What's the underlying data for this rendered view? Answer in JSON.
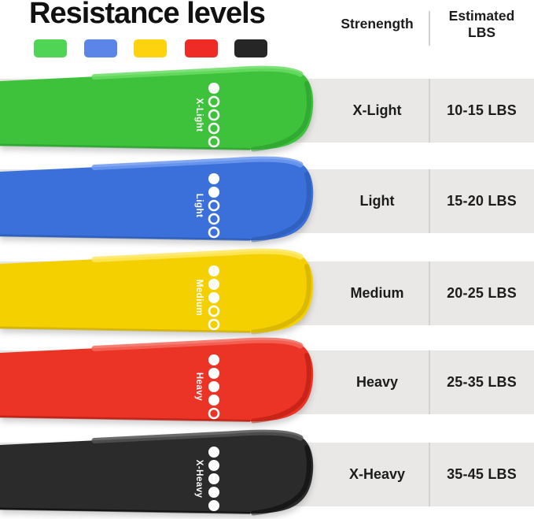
{
  "title": "Resistance levels",
  "table": {
    "strength_header": "Strenength",
    "lbs_header_line1": "Estimated",
    "lbs_header_line2": "LBS"
  },
  "colors": {
    "stripe": "#e9e8e6",
    "divider": "#d2d2d0",
    "text": "#1c1c1c",
    "dot": "#ffffff"
  },
  "bands": [
    {
      "id": "x-light",
      "label": "X-Light",
      "lbs": "10-15 LBS",
      "filled_dots": 1,
      "total_dots": 5,
      "swatch": "#4fd455",
      "main": "#3ec23c",
      "light": "#68dd63",
      "dark": "#1f8f26"
    },
    {
      "id": "light",
      "label": "Light",
      "lbs": "15-20 LBS",
      "filled_dots": 2,
      "total_dots": 5,
      "swatch": "#5b86e8",
      "main": "#3b70da",
      "light": "#6f9af0",
      "dark": "#24509e"
    },
    {
      "id": "medium",
      "label": "Medium",
      "lbs": "20-25 LBS",
      "filled_dots": 3,
      "total_dots": 5,
      "swatch": "#fdd30f",
      "main": "#f5d000",
      "light": "#ffe95e",
      "dark": "#bb9e00"
    },
    {
      "id": "heavy",
      "label": "Heavy",
      "lbs": "25-35 LBS",
      "filled_dots": 4,
      "total_dots": 5,
      "swatch": "#ee2b24",
      "main": "#eb3326",
      "light": "#f4695c",
      "dark": "#9e1408"
    },
    {
      "id": "x-heavy",
      "label": "X-Heavy",
      "lbs": "35-45 LBS",
      "filled_dots": 5,
      "total_dots": 5,
      "swatch": "#262626",
      "main": "#2b2b2b",
      "light": "#525252",
      "dark": "#000000"
    }
  ]
}
